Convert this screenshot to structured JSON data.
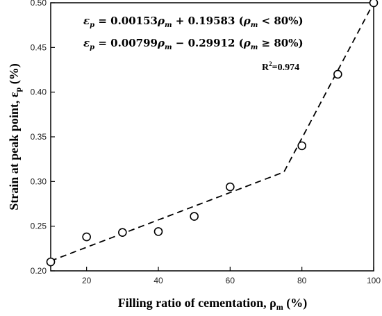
{
  "chart_data": {
    "type": "scatter",
    "xlabel": "Filling ratio of cementation, ",
    "xlabel_symbol": "ρ",
    "xlabel_sub": "m",
    "xlabel_unit": " (%)",
    "ylabel": "Strain at peak point, ",
    "ylabel_symbol": "ε",
    "ylabel_sub": "p",
    "ylabel_unit": " (%)",
    "xlim": [
      10,
      100
    ],
    "ylim": [
      0.2,
      0.5
    ],
    "x_ticks": [
      "20",
      "40",
      "60",
      "80",
      "100"
    ],
    "x_tick_values": [
      20,
      40,
      60,
      80,
      100
    ],
    "y_ticks": [
      "0.20",
      "0.25",
      "0.30",
      "0.35",
      "0.40",
      "0.45",
      "0.50"
    ],
    "y_tick_values": [
      0.2,
      0.25,
      0.3,
      0.35,
      0.4,
      0.45,
      0.5
    ],
    "series": [
      {
        "marker": "open-circle",
        "x": [
          10,
          20,
          30,
          40,
          50,
          60,
          80,
          90,
          100
        ],
        "y": [
          0.21,
          0.238,
          0.243,
          0.244,
          0.261,
          0.294,
          0.34,
          0.42,
          0.5
        ]
      }
    ],
    "fit_line": {
      "style": "dashed",
      "x": [
        10,
        75,
        100
      ],
      "y": [
        0.2111,
        0.3106,
        0.5
      ]
    },
    "annotations": {
      "eq1": {
        "lhs": "ε",
        "lhs_sub": "p",
        "mid": " = 0.00153",
        "rho": "ρ",
        "rho_sub": "m",
        "tail": " + 0.19583 (",
        "cond_rho": "ρ",
        "cond_sub": "m",
        "cond": " < 80%)"
      },
      "eq2": {
        "lhs": "ε",
        "lhs_sub": "p",
        "mid": " = 0.00799",
        "rho": "ρ",
        "rho_sub": "m",
        "tail": " − 0.29912 (",
        "cond_rho": "ρ",
        "cond_sub": "m",
        "cond": " ≥ 80%)"
      },
      "r2": {
        "base": "R",
        "sup": "2",
        "rest": "=0.974"
      }
    }
  }
}
